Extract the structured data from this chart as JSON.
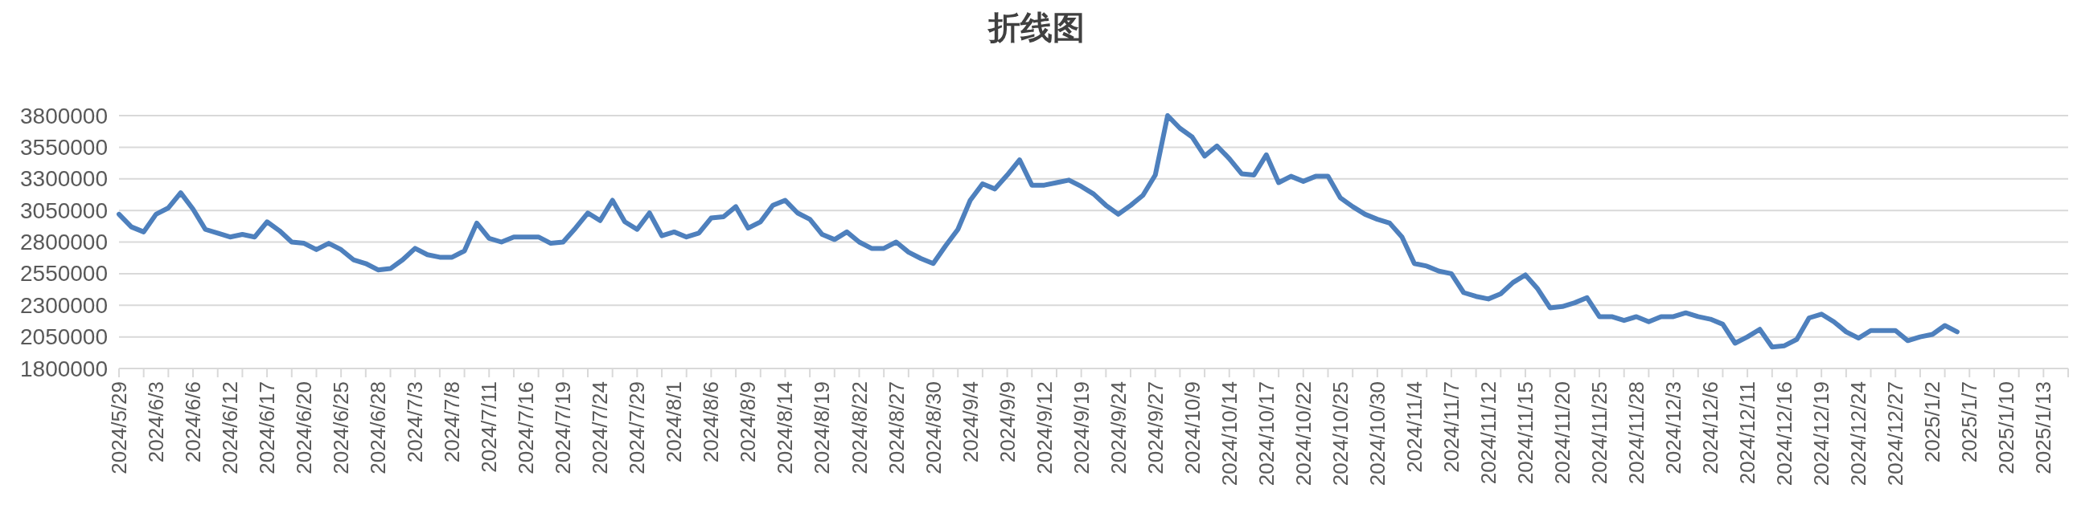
{
  "chart_data": {
    "type": "line",
    "title": "折线图",
    "categories": [
      "2024/5/29",
      null,
      null,
      "2024/6/3",
      null,
      null,
      "2024/6/6",
      null,
      null,
      "2024/6/12",
      null,
      null,
      "2024/6/17",
      null,
      null,
      "2024/6/20",
      null,
      null,
      "2024/6/25",
      null,
      null,
      "2024/6/28",
      null,
      null,
      "2024/7/3",
      null,
      null,
      "2024/7/8",
      null,
      null,
      "2024/7/11",
      null,
      null,
      "2024/7/16",
      null,
      null,
      "2024/7/19",
      null,
      null,
      "2024/7/24",
      null,
      null,
      "2024/7/29",
      null,
      null,
      "2024/8/1",
      null,
      null,
      "2024/8/6",
      null,
      null,
      "2024/8/9",
      null,
      null,
      "2024/8/14",
      null,
      null,
      "2024/8/19",
      null,
      null,
      "2024/8/22",
      null,
      null,
      "2024/8/27",
      null,
      null,
      "2024/8/30",
      null,
      null,
      "2024/9/4",
      null,
      null,
      "2024/9/9",
      null,
      null,
      "2024/9/12",
      null,
      null,
      "2024/9/19",
      null,
      null,
      "2024/9/24",
      null,
      null,
      "2024/9/27",
      null,
      null,
      "2024/10/9",
      null,
      null,
      "2024/10/14",
      null,
      null,
      "2024/10/17",
      null,
      null,
      "2024/10/22",
      null,
      null,
      "2024/10/25",
      null,
      null,
      "2024/10/30",
      null,
      null,
      "2024/11/4",
      null,
      null,
      "2024/11/7",
      null,
      null,
      "2024/11/12",
      null,
      null,
      "2024/11/15",
      null,
      null,
      "2024/11/20",
      null,
      null,
      "2024/11/25",
      null,
      null,
      "2024/11/28",
      null,
      null,
      "2024/12/3",
      null,
      null,
      "2024/12/6",
      null,
      null,
      "2024/12/11",
      null,
      null,
      "2024/12/16",
      null,
      null,
      "2024/12/19",
      null,
      null,
      "2024/12/24",
      null,
      null,
      "2024/12/27",
      null,
      null,
      "2025/1/2",
      null,
      null,
      "2025/1/7",
      null,
      null,
      "2025/1/10",
      null,
      null,
      "2025/1/13",
      null,
      null
    ],
    "series": [
      {
        "color": "#4e80bd",
        "values": [
          3020000,
          2920000,
          2880000,
          3020000,
          3070000,
          3190000,
          3060000,
          2900000,
          2870000,
          2840000,
          2860000,
          2840000,
          2960000,
          2890000,
          2800000,
          2790000,
          2740000,
          2790000,
          2740000,
          2660000,
          2630000,
          2580000,
          2590000,
          2660000,
          2750000,
          2700000,
          2680000,
          2680000,
          2730000,
          2950000,
          2830000,
          2800000,
          2840000,
          2840000,
          2840000,
          2790000,
          2800000,
          2910000,
          3030000,
          2970000,
          3130000,
          2960000,
          2900000,
          3030000,
          2850000,
          2880000,
          2840000,
          2870000,
          2990000,
          3000000,
          3080000,
          2910000,
          2960000,
          3090000,
          3130000,
          3030000,
          2980000,
          2860000,
          2820000,
          2880000,
          2800000,
          2750000,
          2750000,
          2800000,
          2720000,
          2670000,
          2630000,
          2770000,
          2900000,
          3130000,
          3260000,
          3220000,
          3330000,
          3450000,
          3250000,
          3250000,
          3270000,
          3290000,
          3240000,
          3180000,
          3090000,
          3020000,
          3090000,
          3170000,
          3330000,
          3800000,
          3700000,
          3630000,
          3480000,
          3560000,
          3460000,
          3340000,
          3330000,
          3490000,
          3270000,
          3320000,
          3280000,
          3320000,
          3320000,
          3150000,
          3080000,
          3020000,
          2980000,
          2950000,
          2840000,
          2630000,
          2610000,
          2570000,
          2550000,
          2400000,
          2370000,
          2350000,
          2390000,
          2480000,
          2540000,
          2430000,
          2280000,
          2290000,
          2320000,
          2360000,
          2210000,
          2210000,
          2180000,
          2210000,
          2170000,
          2210000,
          2210000,
          2240000,
          2210000,
          2190000,
          2150000,
          2000000,
          2050000,
          2110000,
          1970000,
          1980000,
          2030000,
          2200000,
          2230000,
          2170000,
          2090000,
          2040000,
          2100000,
          2100000,
          2100000,
          2020000,
          2050000,
          2070000,
          2140000,
          2090000,
          null,
          null,
          null,
          null,
          null,
          null,
          null,
          null,
          null
        ]
      }
    ],
    "ylim": [
      1800000,
      3800000
    ],
    "yticks": [
      1800000,
      2050000,
      2300000,
      2550000,
      2800000,
      3050000,
      3300000,
      3550000,
      3800000
    ],
    "grid": "y"
  }
}
